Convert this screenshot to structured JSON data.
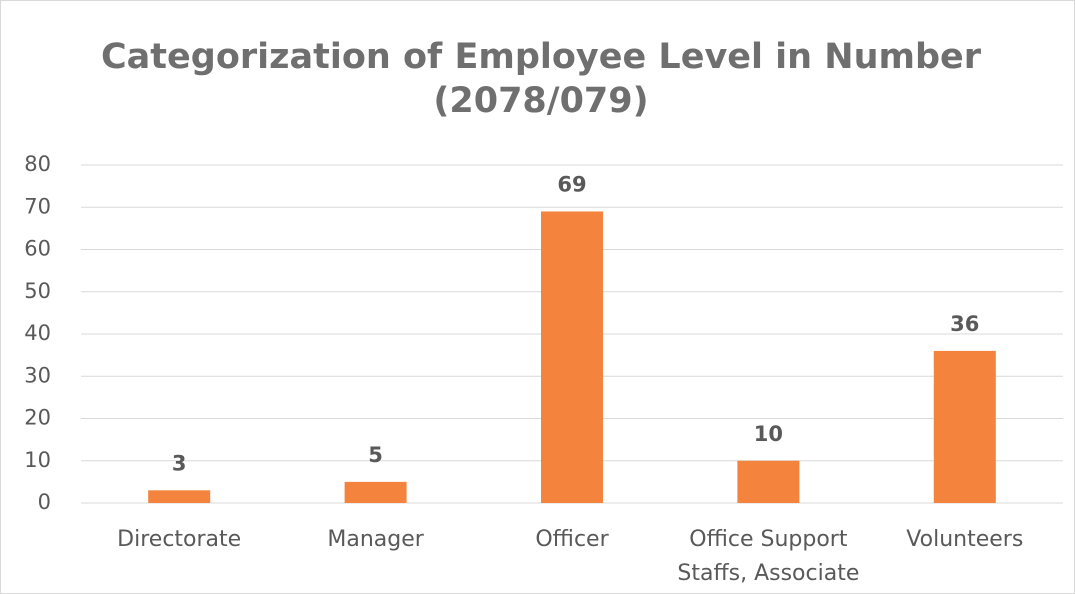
{
  "chart_data": {
    "type": "bar",
    "title": "Categorization of Employee Level in Number (2078/079)",
    "categories": [
      "Directorate",
      "Manager",
      "Officer",
      "Office Support Staffs, Associate",
      "Volunteers"
    ],
    "values": [
      3,
      5,
      69,
      10,
      36
    ],
    "color": "#f4843d",
    "ylim": [
      0,
      80
    ],
    "yticks": [
      0,
      10,
      20,
      30,
      40,
      50,
      60,
      70,
      80
    ],
    "grid": true,
    "data_labels": true
  }
}
